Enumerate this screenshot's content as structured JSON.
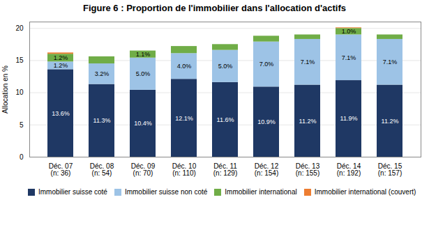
{
  "chart_data": {
    "type": "bar",
    "stacked": true,
    "title": "Figure 6 : Proportion de l'immobilier dans l'allocation d'actifs",
    "ylabel": "Allocation en %",
    "categories": [
      "Déc. 07\n(n: 36)",
      "Déc. 08\n(n: 54)",
      "Déc. 09\n(n: 70)",
      "Déc. 10\n(n: 110)",
      "Déc. 11\n(n: 129)",
      "Déc. 12\n(n: 154)",
      "Déc. 13\n(n: 155)",
      "Déc. 14\n(n: 192)",
      "Déc. 15\n(n: 157)"
    ],
    "series": [
      {
        "name": "Immobilier suisse coté",
        "color": "#1f3864",
        "values": [
          13.6,
          11.3,
          10.4,
          12.1,
          11.6,
          10.9,
          11.2,
          11.9,
          11.2
        ],
        "value_labels": [
          "13.6%",
          "11.3%",
          "10.4%",
          "12.1%",
          "11.6%",
          "10.9%",
          "11.2%",
          "11.9%",
          "11.2%"
        ]
      },
      {
        "name": "Immobilier suisse non coté",
        "color": "#9dc3e6",
        "values": [
          1.2,
          3.2,
          5.0,
          4.0,
          5.0,
          7.0,
          7.1,
          7.1,
          7.1
        ],
        "value_labels": [
          "1.2%",
          "3.2%",
          "5.0%",
          "4.0%",
          "5.0%",
          "7.0%",
          "7.1%",
          "7.1%",
          "7.1%"
        ]
      },
      {
        "name": "Immobilier international",
        "color": "#70ad47",
        "values": [
          1.2,
          1.1,
          1.1,
          1.1,
          0.9,
          0.9,
          0.7,
          1.0,
          0.7
        ],
        "value_labels": [
          "1.2%",
          null,
          "1.1%",
          null,
          null,
          null,
          null,
          "1.0%",
          null
        ]
      },
      {
        "name": "Immobilier international (couvert)",
        "color": "#ed7d31",
        "values": [
          0.2,
          0.0,
          0.0,
          0.0,
          0.0,
          0.0,
          0.0,
          0.1,
          0.0
        ],
        "value_labels": [
          null,
          null,
          null,
          null,
          null,
          null,
          null,
          null,
          null
        ]
      }
    ],
    "ylim": [
      0,
      21
    ],
    "yticks": [
      0,
      5,
      10,
      15,
      20
    ],
    "grid": true,
    "data_labels": true,
    "legend": "bottom"
  }
}
